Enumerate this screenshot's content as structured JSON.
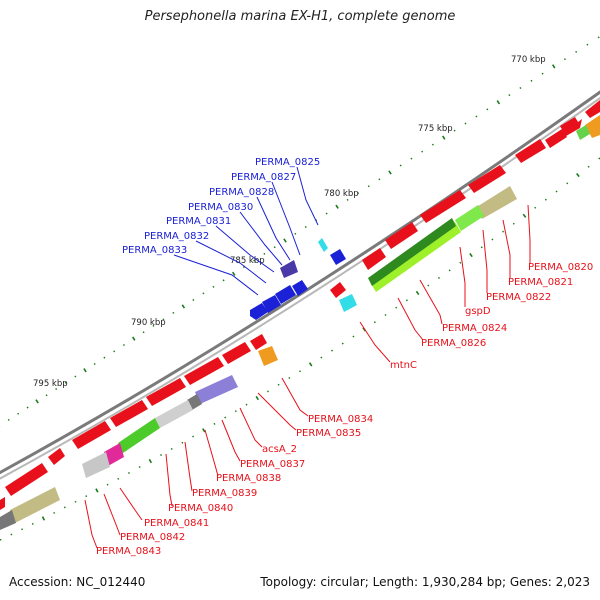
{
  "title": "Persephonella marina EX-H1, complete genome",
  "footer": {
    "accession": "Accession: NC_012440",
    "summary": "Topology: circular; Length: 1,930,284 bp; Genes: 2,023"
  },
  "colors": {
    "forward_gene": "#e8101a",
    "reverse_gene": "#1b21d6",
    "backbone": "#888888",
    "tick": "#1a7a1a"
  },
  "scale_labels": [
    "770 kbp",
    "775 kbp",
    "780 kbp",
    "785 kbp",
    "790 kbp",
    "795 kbp"
  ],
  "blue_labels": [
    "PERMA_0825",
    "PERMA_0827",
    "PERMA_0828",
    "PERMA_0830",
    "PERMA_0831",
    "PERMA_0832",
    "PERMA_0833"
  ],
  "red_labels": [
    "PERMA_0820",
    "PERMA_0821",
    "PERMA_0822",
    "gspD",
    "PERMA_0824",
    "PERMA_0826",
    "mtnC",
    "PERMA_0834",
    "PERMA_0835",
    "acsA_2",
    "PERMA_0837",
    "PERMA_0838",
    "PERMA_0839",
    "PERMA_0840",
    "PERMA_0841",
    "PERMA_0842",
    "PERMA_0843"
  ]
}
